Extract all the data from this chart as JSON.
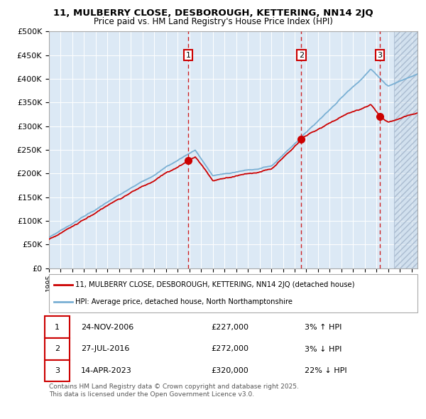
{
  "title": "11, MULBERRY CLOSE, DESBOROUGH, KETTERING, NN14 2JQ",
  "subtitle": "Price paid vs. HM Land Registry's House Price Index (HPI)",
  "legend_line1": "11, MULBERRY CLOSE, DESBOROUGH, KETTERING, NN14 2JQ (detached house)",
  "legend_line2": "HPI: Average price, detached house, North Northamptonshire",
  "sale_labels": [
    "1",
    "2",
    "3"
  ],
  "sale_dates": [
    "24-NOV-2006",
    "27-JUL-2016",
    "14-APR-2023"
  ],
  "sale_prices": [
    227000,
    272000,
    320000
  ],
  "sale_hpi_diff": [
    "3% ↑ HPI",
    "3% ↓ HPI",
    "22% ↓ HPI"
  ],
  "sale_years": [
    2006.9,
    2016.57,
    2023.29
  ],
  "xmin": 1995,
  "xmax": 2026.5,
  "ymin": 0,
  "ymax": 500000,
  "background_color": "#dce9f5",
  "grid_color": "#ffffff",
  "red_color": "#cc0000",
  "blue_color": "#7ab0d4",
  "footer_text": "Contains HM Land Registry data © Crown copyright and database right 2025.\nThis data is licensed under the Open Government Licence v3.0."
}
